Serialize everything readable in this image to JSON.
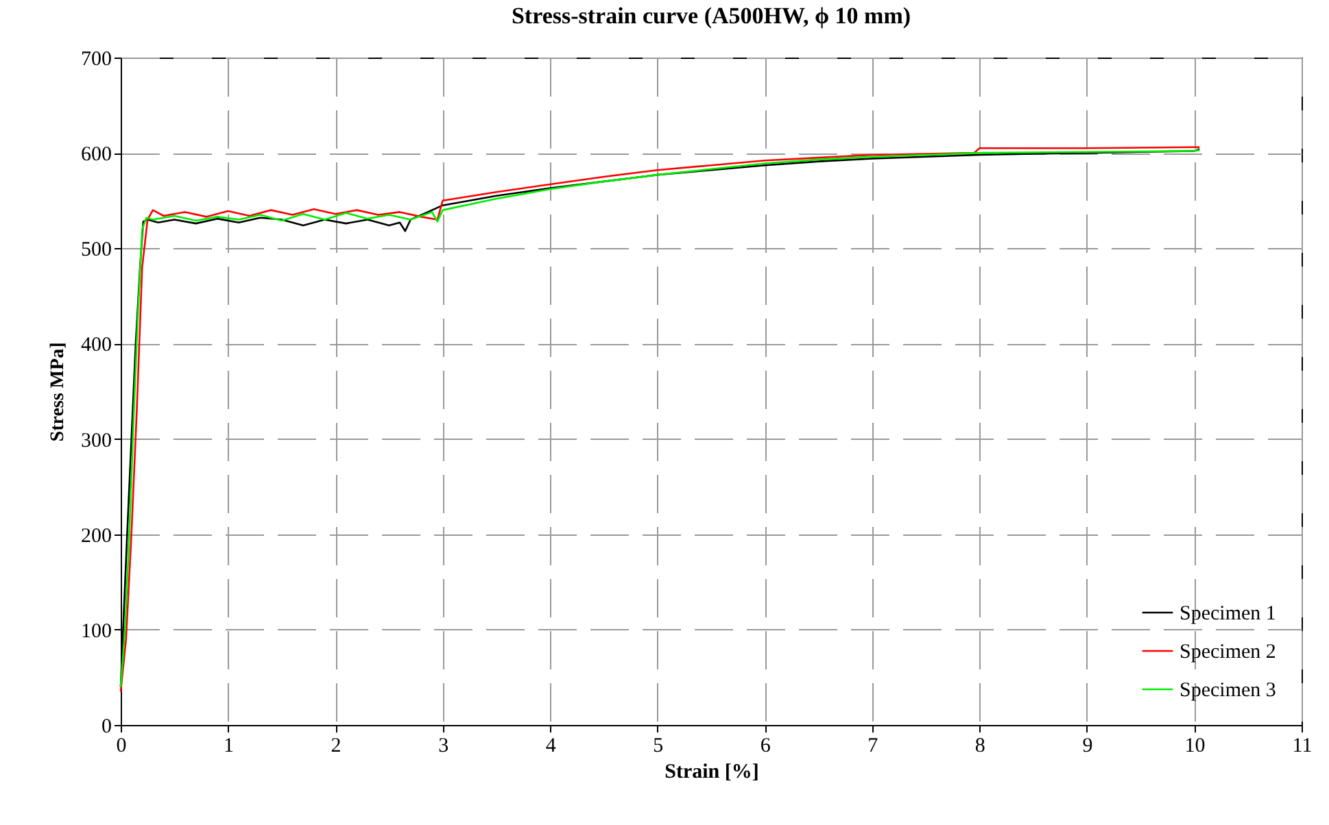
{
  "chart_data": {
    "type": "line",
    "title": "Stress-strain curve (A500HW, ϕ 10 mm)",
    "xlabel": "Strain [%]",
    "ylabel": "Stress MPa]",
    "series": [
      {
        "name": "Specimen 1",
        "color": "#000000",
        "x": [
          0,
          0.03,
          0.06,
          0.1,
          0.14,
          0.18,
          0.21,
          0.25,
          0.35,
          0.5,
          0.7,
          0.9,
          1.1,
          1.3,
          1.5,
          1.7,
          1.9,
          2.1,
          2.3,
          2.5,
          2.6,
          2.65,
          2.7,
          2.8,
          2.9,
          3.0,
          3.5,
          4,
          4.5,
          5,
          5.5,
          6,
          6.5,
          7,
          7.5,
          8,
          8.5,
          9,
          9.5,
          10,
          10.05
        ],
        "values": [
          40,
          120,
          200,
          300,
          400,
          480,
          528,
          530,
          527,
          530,
          526,
          531,
          527,
          532,
          530,
          524,
          530,
          526,
          530,
          524,
          527,
          518,
          530,
          535,
          540,
          545,
          555,
          563,
          570,
          577,
          582,
          587,
          591,
          594,
          596,
          598,
          599,
          600,
          601,
          602,
          604
        ]
      },
      {
        "name": "Specimen 2",
        "color": "#ff0000",
        "x": [
          0,
          0.05,
          0.1,
          0.15,
          0.2,
          0.25,
          0.3,
          0.4,
          0.6,
          0.8,
          1.0,
          1.2,
          1.4,
          1.6,
          1.8,
          2.0,
          2.2,
          2.4,
          2.6,
          2.8,
          2.95,
          3.0,
          3.5,
          4,
          4.5,
          5,
          5.5,
          6,
          6.5,
          7,
          7.5,
          7.95,
          8,
          9,
          10,
          10.05
        ],
        "values": [
          35,
          90,
          200,
          330,
          480,
          530,
          540,
          534,
          538,
          533,
          539,
          534,
          540,
          535,
          541,
          536,
          540,
          535,
          538,
          533,
          530,
          550,
          559,
          567,
          575,
          582,
          587,
          592,
          595,
          598,
          599,
          600,
          605,
          605,
          606,
          606
        ]
      },
      {
        "name": "Specimen 3",
        "color": "#00ee00",
        "x": [
          0,
          0.04,
          0.08,
          0.12,
          0.16,
          0.2,
          0.24,
          0.3,
          0.5,
          0.7,
          0.9,
          1.1,
          1.3,
          1.5,
          1.7,
          1.9,
          2.1,
          2.3,
          2.5,
          2.7,
          2.9,
          2.95,
          3.0,
          3.5,
          4,
          4.5,
          5,
          5.5,
          6,
          6.5,
          7,
          7.5,
          8,
          9,
          10,
          10.05
        ],
        "values": [
          40,
          100,
          200,
          320,
          430,
          520,
          532,
          530,
          534,
          529,
          533,
          530,
          535,
          529,
          536,
          530,
          537,
          531,
          535,
          530,
          538,
          528,
          540,
          552,
          562,
          570,
          577,
          583,
          589,
          593,
          596,
          598,
          600,
          601,
          602,
          603
        ]
      }
    ],
    "xlim": [
      0,
      11
    ],
    "xticks": [
      0,
      1,
      2,
      3,
      4,
      5,
      6,
      7,
      8,
      9,
      10,
      11
    ],
    "ylim": [
      0,
      700
    ],
    "yticks": [
      0,
      100,
      200,
      300,
      400,
      500,
      600,
      700
    ],
    "grid": true,
    "legend": "bottom right",
    "marker": "none",
    "line_style": "solid"
  }
}
